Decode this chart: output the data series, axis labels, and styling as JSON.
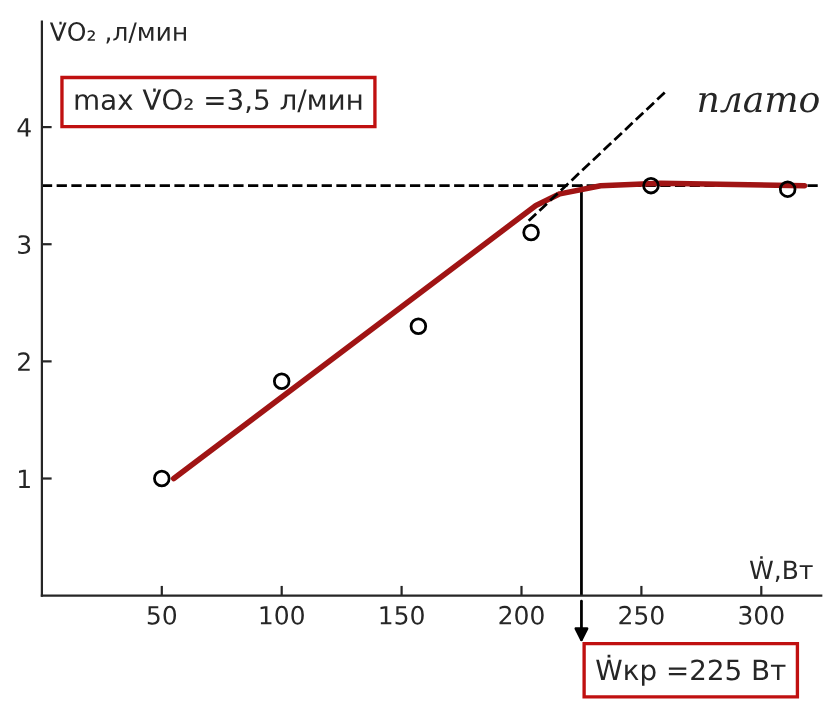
{
  "chart_data": {
    "type": "scatter",
    "xlabel": "Ẇ,Вт",
    "ylabel": "V̇O₂ ,л/мин",
    "xlim": [
      0,
      325
    ],
    "ylim": [
      0,
      4.9
    ],
    "xticks": [
      50,
      100,
      150,
      200,
      250,
      300
    ],
    "yticks": [
      1,
      2,
      3,
      4
    ],
    "grid": false,
    "series": [
      {
        "color": "#000000",
        "marker": "circle",
        "x": [
          50,
          100,
          157,
          204,
          254,
          311
        ],
        "values": [
          1.0,
          1.83,
          2.3,
          3.1,
          3.5,
          3.47
        ]
      },
      {
        "type": "line",
        "color": "#a01414",
        "marker": "none",
        "line_style": "solid",
        "x": [
          55,
          206,
          216,
          233,
          258,
          318
        ],
        "values": [
          1.0,
          3.33,
          3.43,
          3.5,
          3.52,
          3.5
        ]
      },
      {
        "type": "line",
        "color": "#000000",
        "marker": "none",
        "line_style": "dashed",
        "x": [
          203,
          260
        ],
        "values": [
          3.2,
          4.3
        ]
      }
    ],
    "ref_lines": [
      {
        "axis": "y",
        "value": 3.5,
        "color": "#000000",
        "line_style": "dashed"
      },
      {
        "axis": "x",
        "value": 225,
        "color": "#000000",
        "line_style": "solid"
      }
    ],
    "annotations": [
      "max V̇O₂ =3,5 л/мин",
      "плато",
      "Ẇкр =225 Вт"
    ]
  }
}
